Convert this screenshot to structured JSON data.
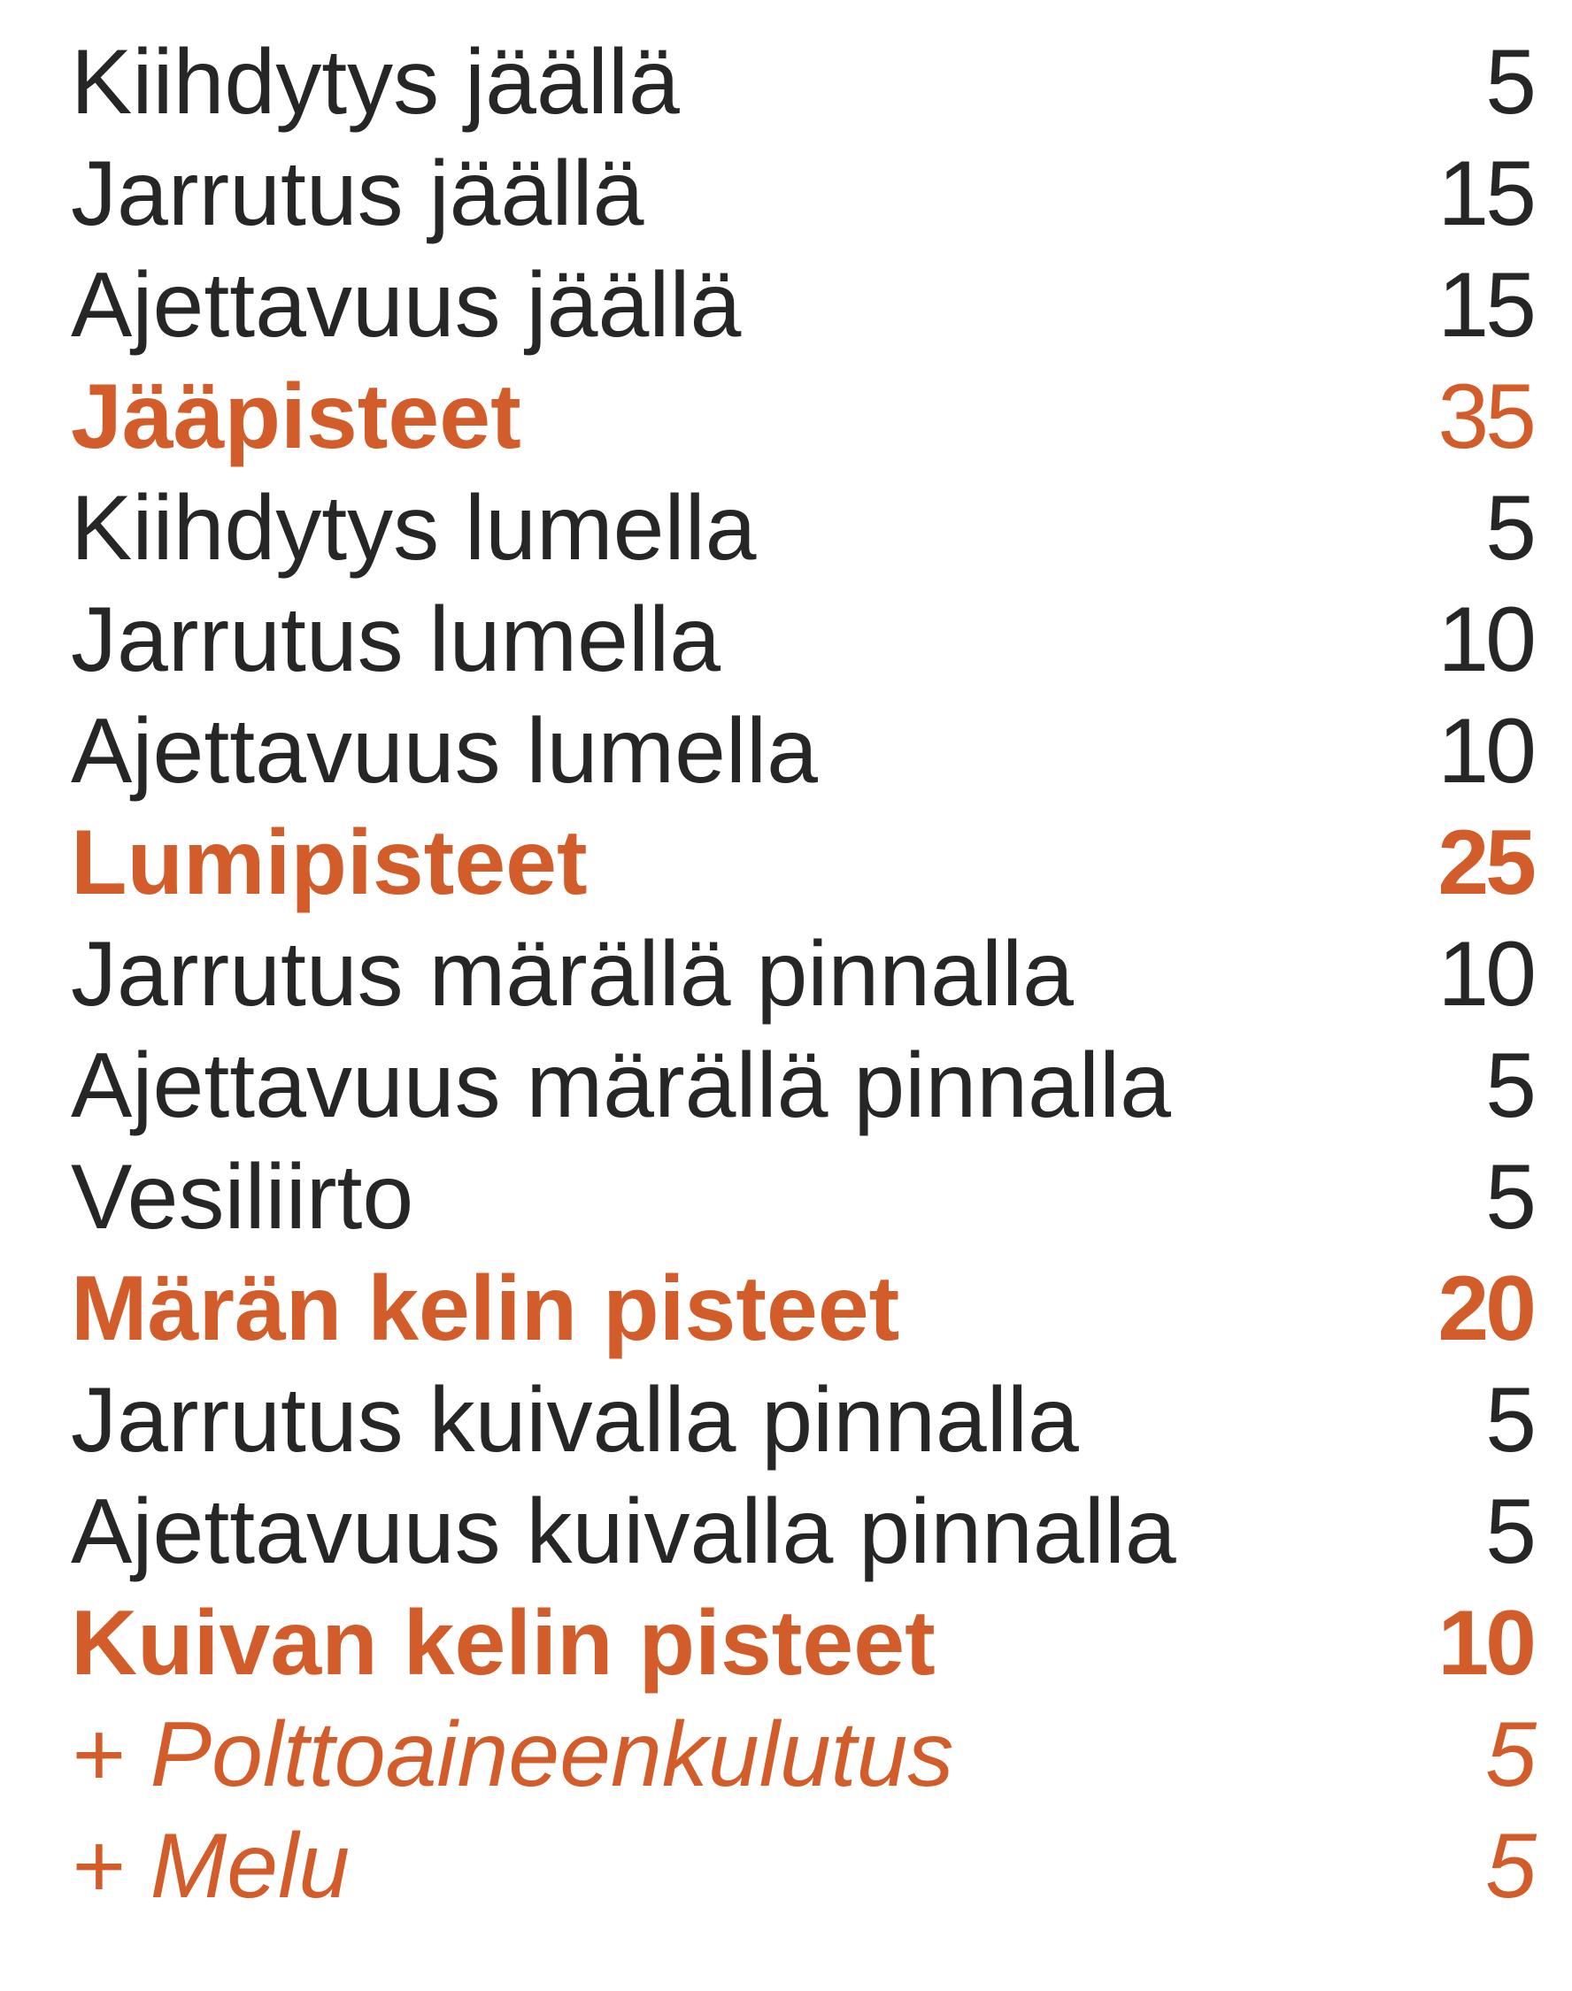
{
  "colors": {
    "text": "#262626",
    "accent": "#d35d2a"
  },
  "rows": [
    {
      "label": "Kiihdytys jäällä",
      "value": "5"
    },
    {
      "label": "Jarrutus jäällä",
      "value": "15"
    },
    {
      "label": "Ajettavuus jäällä",
      "value": "15"
    },
    {
      "label": "Jääpisteet",
      "value": "35"
    },
    {
      "label": "Kiihdytys lumella",
      "value": "5"
    },
    {
      "label": "Jarrutus lumella",
      "value": "10"
    },
    {
      "label": "Ajettavuus lumella",
      "value": "10"
    },
    {
      "label": "Lumipisteet",
      "value": "25"
    },
    {
      "label": "Jarrutus märällä pinnalla",
      "value": "10"
    },
    {
      "label": "Ajettavuus märällä pinnalla",
      "value": "5"
    },
    {
      "label": "Vesiliirto",
      "value": "5"
    },
    {
      "label": "Märän kelin pisteet",
      "value": "20"
    },
    {
      "label": "Jarrutus kuivalla pinnalla",
      "value": "5"
    },
    {
      "label": "Ajettavuus kuivalla pinnalla",
      "value": "5"
    },
    {
      "label": "Kuivan kelin pisteet",
      "value": "10"
    },
    {
      "label": "+ Polttoaineenkulutus",
      "value": "5"
    },
    {
      "label": "+ Melu",
      "value": "5"
    }
  ]
}
